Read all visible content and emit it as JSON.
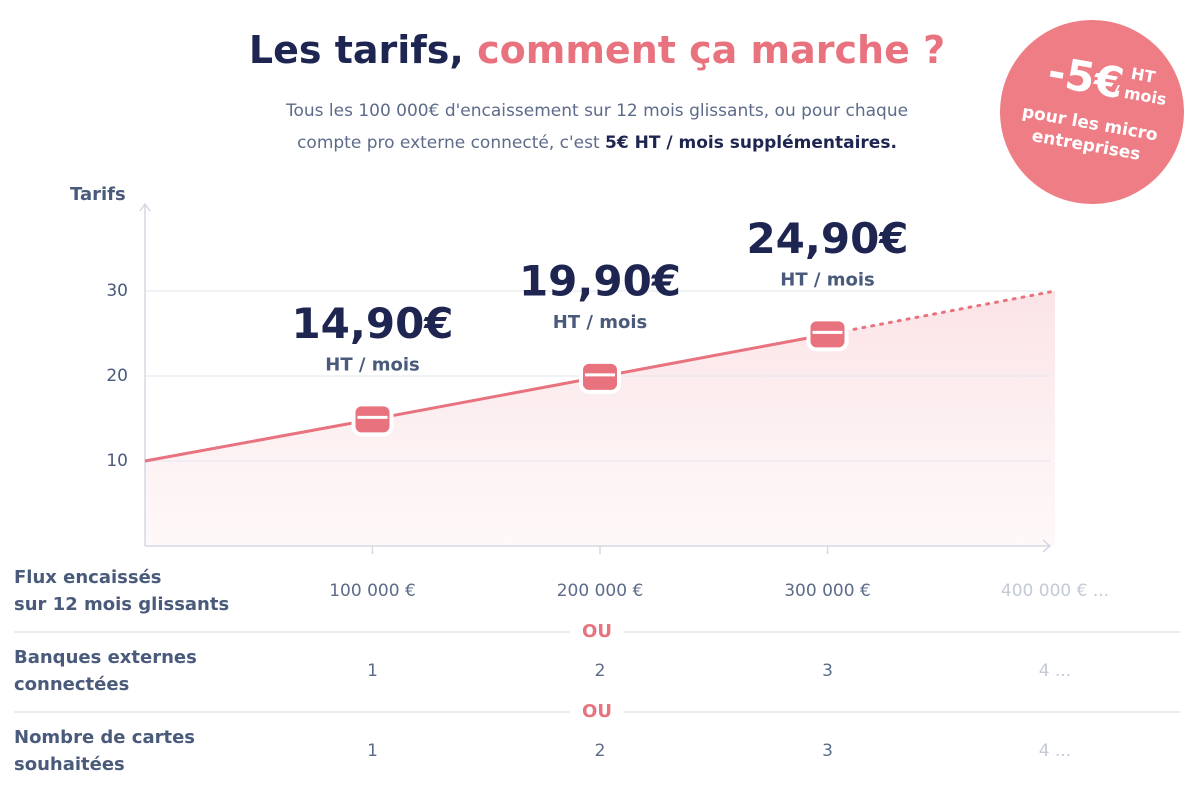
{
  "title": [
    "Les tarifs,",
    "comment ça marche ?"
  ],
  "subtitle": [
    "Tous les 100 000€ d'encaissement sur 12 mois glissants, ou pour chaque",
    "compte pro externe connecté, c'est",
    "5€ HT / mois supplémentaires."
  ],
  "badge": {
    "amount": "-5€",
    "unit": [
      "HT",
      "/ mois"
    ],
    "text": [
      "pour les micro",
      "entreprises"
    ]
  },
  "chart_data": {
    "type": "line",
    "y_label": "Tarifs",
    "x_label": [
      "Flux encaissés",
      "sur 12 mois glissants"
    ],
    "x": [
      0,
      100000,
      200000,
      300000
    ],
    "values": [
      10,
      14.9,
      19.9,
      24.9
    ],
    "color": "#e8737f",
    "projection": {
      "x": [
        300000,
        400000
      ],
      "values": [
        24.9,
        30
      ]
    },
    "prices": {
      "x": [
        100000,
        200000,
        300000
      ],
      "values": [
        14.9,
        19.9,
        24.9
      ],
      "value_labels": [
        "14,90€",
        "19,90€",
        "24,90€"
      ],
      "unit": "HT / mois"
    },
    "xlim": [
      0,
      400000
    ],
    "xticks": [
      {
        "value": 100000,
        "label": "100 000 €"
      },
      {
        "value": 200000,
        "label": "200 000 €"
      },
      {
        "value": 300000,
        "label": "300 000 €"
      },
      {
        "value": 400000,
        "label": "400 000 € ..."
      }
    ],
    "ylim": [
      0,
      40
    ],
    "yticks": [
      10,
      20,
      30
    ],
    "grid": true
  },
  "table": {
    "separator": "OU",
    "rows": [
      {
        "label": [
          "Banques externes",
          "connectées"
        ],
        "values": [
          "1",
          "2",
          "3",
          "4 ..."
        ]
      },
      {
        "label": [
          "Nombre de cartes",
          "souhaitées"
        ],
        "values": [
          "1",
          "2",
          "3",
          "4 ..."
        ]
      }
    ]
  }
}
